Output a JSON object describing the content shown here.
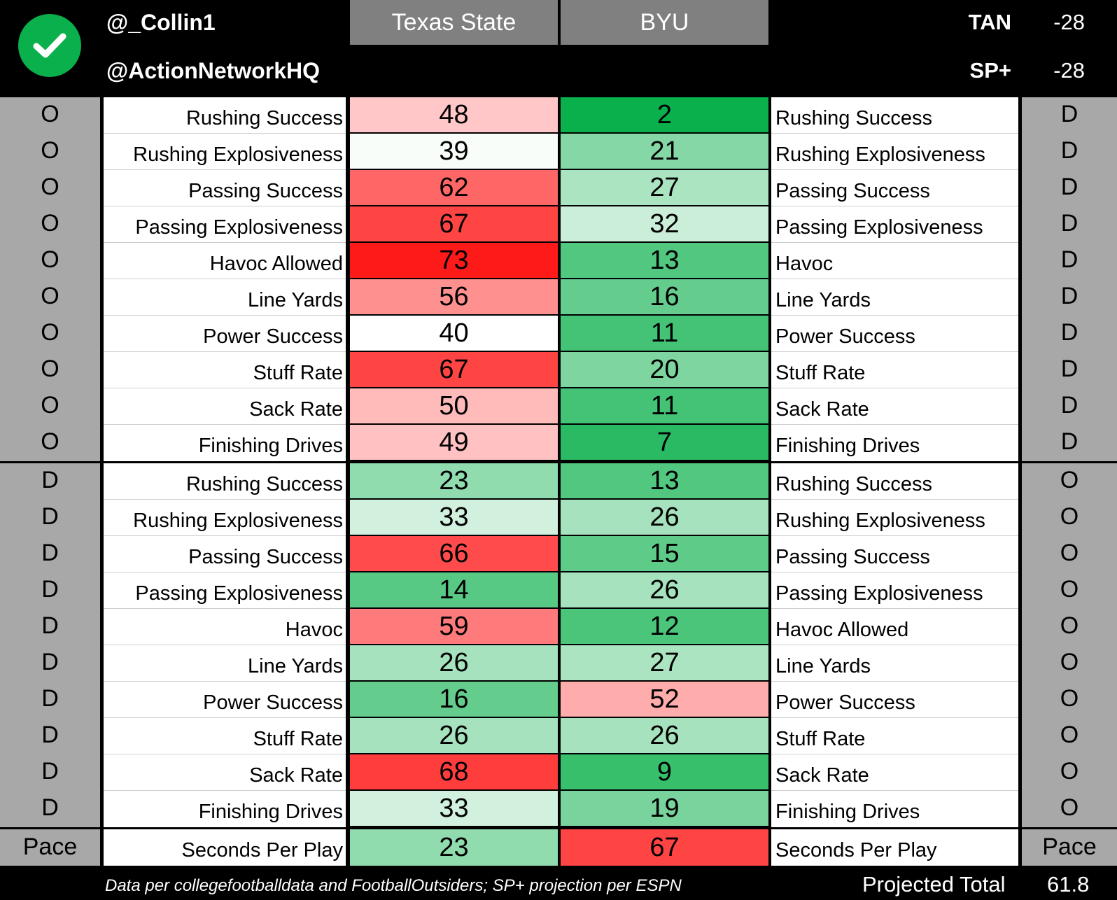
{
  "header": {
    "handle1": "@_Collin1",
    "handle2": "@ActionNetworkHQ",
    "team_left": "Texas State",
    "team_right": "BYU",
    "metric1_label": "TAN",
    "metric1_value": "-28",
    "metric2_label": "SP+",
    "metric2_value": "-28",
    "logo_icon": "check-circle-icon",
    "logo_color": "#0ab04b"
  },
  "section1": {
    "left_side": "O",
    "right_side": "D",
    "rows": [
      {
        "left_label": "Rushing Success",
        "left_value": 48,
        "right_value": 2,
        "right_label": "Rushing Success"
      },
      {
        "left_label": "Rushing Explosiveness",
        "left_value": 39,
        "right_value": 21,
        "right_label": "Rushing Explosiveness"
      },
      {
        "left_label": "Passing Success",
        "left_value": 62,
        "right_value": 27,
        "right_label": "Passing Success"
      },
      {
        "left_label": "Passing Explosiveness",
        "left_value": 67,
        "right_value": 32,
        "right_label": "Passing Explosiveness"
      },
      {
        "left_label": "Havoc Allowed",
        "left_value": 73,
        "right_value": 13,
        "right_label": "Havoc"
      },
      {
        "left_label": "Line Yards",
        "left_value": 56,
        "right_value": 16,
        "right_label": "Line Yards"
      },
      {
        "left_label": "Power Success",
        "left_value": 40,
        "right_value": 11,
        "right_label": "Power Success"
      },
      {
        "left_label": "Stuff Rate",
        "left_value": 67,
        "right_value": 20,
        "right_label": "Stuff Rate"
      },
      {
        "left_label": "Sack Rate",
        "left_value": 50,
        "right_value": 11,
        "right_label": "Sack Rate"
      },
      {
        "left_label": "Finishing Drives",
        "left_value": 49,
        "right_value": 7,
        "right_label": "Finishing Drives"
      }
    ]
  },
  "section2": {
    "left_side": "D",
    "right_side": "O",
    "rows": [
      {
        "left_label": "Rushing Success",
        "left_value": 23,
        "right_value": 13,
        "right_label": "Rushing Success"
      },
      {
        "left_label": "Rushing Explosiveness",
        "left_value": 33,
        "right_value": 26,
        "right_label": "Rushing Explosiveness"
      },
      {
        "left_label": "Passing Success",
        "left_value": 66,
        "right_value": 15,
        "right_label": "Passing Success"
      },
      {
        "left_label": "Passing Explosiveness",
        "left_value": 14,
        "right_value": 26,
        "right_label": "Passing Explosiveness"
      },
      {
        "left_label": "Havoc",
        "left_value": 59,
        "right_value": 12,
        "right_label": "Havoc Allowed"
      },
      {
        "left_label": "Line Yards",
        "left_value": 26,
        "right_value": 27,
        "right_label": "Line Yards"
      },
      {
        "left_label": "Power Success",
        "left_value": 16,
        "right_value": 52,
        "right_label": "Power Success"
      },
      {
        "left_label": "Stuff Rate",
        "left_value": 26,
        "right_value": 26,
        "right_label": "Stuff Rate"
      },
      {
        "left_label": "Sack Rate",
        "left_value": 68,
        "right_value": 9,
        "right_label": "Sack Rate"
      },
      {
        "left_label": "Finishing Drives",
        "left_value": 33,
        "right_value": 19,
        "right_label": "Finishing Drives"
      }
    ]
  },
  "pace": {
    "left_side": "Pace",
    "right_side": "Pace",
    "left_label": "Seconds Per Play",
    "left_value": 23,
    "right_value": 67,
    "right_label": "Seconds Per Play"
  },
  "footer": {
    "note": "Data per collegefootballdata and FootballOutsiders; SP+ projection per ESPN",
    "projected_label": "Projected Total",
    "projected_value": "61.8"
  },
  "colors": {
    "good": "#0ab04b",
    "bad": "#ff1a1a",
    "neutral": "#ffffff",
    "side_panel": "#a8a8a8",
    "team_header": "#808080"
  }
}
